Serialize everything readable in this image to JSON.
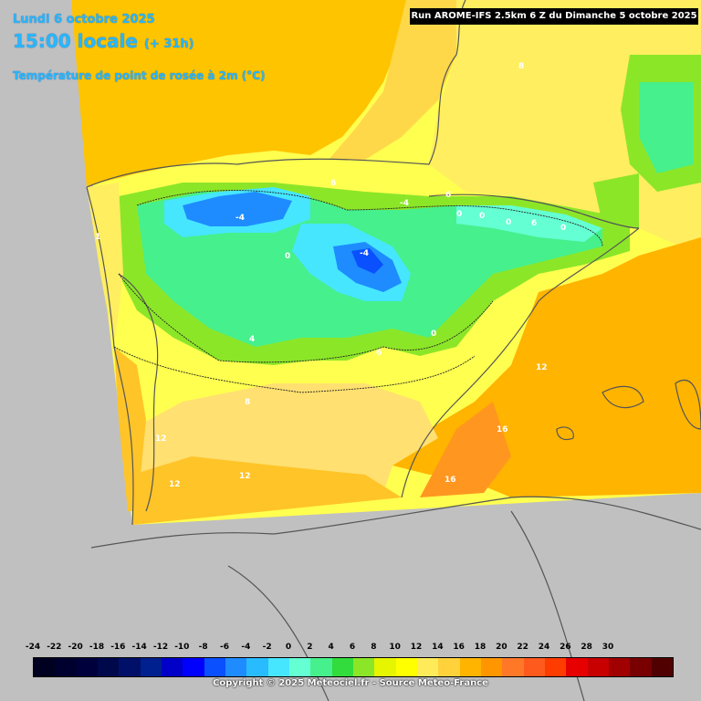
{
  "header": {
    "date": "Lundi 6 octobre 2025",
    "time": "15:00 locale",
    "offset": "(+ 31h)",
    "variable": "Température de point de rosée à 2m (°C)"
  },
  "run_banner": "Run AROME-IFS 2.5km 6 Z du Dimanche 5 octobre 2025",
  "map_labels": [
    {
      "text": "8"
    },
    {
      "text": "6"
    },
    {
      "text": "6"
    },
    {
      "text": "-4"
    },
    {
      "text": "1"
    },
    {
      "text": "-4"
    },
    {
      "text": "0"
    },
    {
      "text": "-4"
    },
    {
      "text": "4"
    },
    {
      "text": "6"
    },
    {
      "text": "0"
    },
    {
      "text": "0"
    },
    {
      "text": "0"
    },
    {
      "text": "0"
    },
    {
      "text": "6"
    },
    {
      "text": "0"
    },
    {
      "text": "12"
    },
    {
      "text": "8"
    },
    {
      "text": "16"
    },
    {
      "text": "12"
    },
    {
      "text": "12"
    },
    {
      "text": "12"
    },
    {
      "text": "16"
    }
  ],
  "legend": {
    "ticks": [
      "-24",
      "-22",
      "-20",
      "-18",
      "-16",
      "-14",
      "-12",
      "-10",
      "-8",
      "-6",
      "-4",
      "-2",
      "0",
      "2",
      "4",
      "6",
      "8",
      "10",
      "12",
      "14",
      "16",
      "18",
      "20",
      "22",
      "24",
      "26",
      "28",
      "30"
    ],
    "colors": [
      "#000020",
      "#00002e",
      "#00003c",
      "#00084c",
      "#001068",
      "#002090",
      "#0000c8",
      "#0000ff",
      "#0a50ff",
      "#1e8cff",
      "#28bcff",
      "#46e6ff",
      "#64ffd2",
      "#46f08c",
      "#32dc3c",
      "#8ce628",
      "#e6f500",
      "#ffff00",
      "#ffeb5a",
      "#ffd23c",
      "#ffb400",
      "#ff9600",
      "#ff7828",
      "#ff5a1e",
      "#ff3c00",
      "#e60000",
      "#c80000",
      "#a00000",
      "#780000",
      "#500000"
    ],
    "unit": "°C"
  },
  "copyright": "Copyright © 2025 Meteociel.fr - Source Meteo-France"
}
